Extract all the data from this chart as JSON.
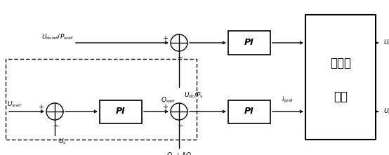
{
  "fig_width": 5.54,
  "fig_height": 2.21,
  "dpi": 100,
  "bg_color": "#ffffff",
  "line_color": "#000000",
  "text_color": "#000000",
  "top_input_label": "$U_{\\mathrm{dcref}}/P_{\\mathrm{sref}}$",
  "top_feedback_label": "$U_{\\mathrm{dc}}/P_{\\mathrm{s}}$",
  "bot_input_label": "$U_{\\mathrm{sref}}$",
  "bot_feedback_label": "$U_{\\mathrm{s}}$",
  "q_label": "$Q_{\\mathrm{sref}}$",
  "q_feedback_label": "$Q_{\\mathrm{s}}+\\Delta Q$",
  "iqref_label": "$i_{\\mathrm{qref}}$",
  "udref_label": "$U_{\\mathrm{dref}}$",
  "uqref_label": "$U_{\\mathrm{qref}}$",
  "ctrl_label1": "控制器",
  "ctrl_label2": "内环"
}
